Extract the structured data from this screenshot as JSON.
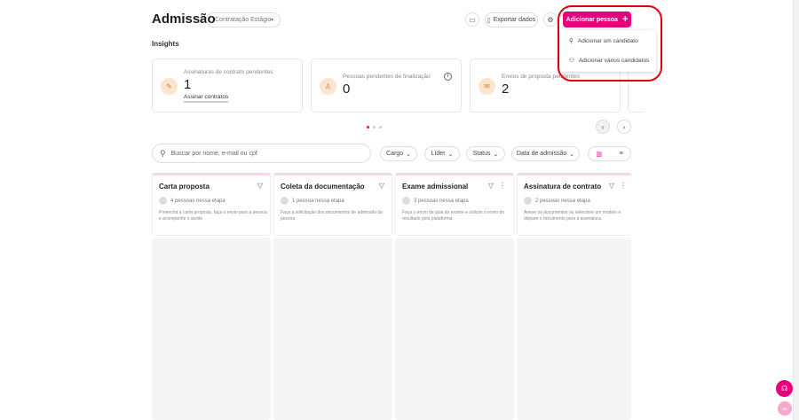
{
  "header": {
    "title": "Admissão",
    "flow_select": "Contratação Estágio",
    "export_label": "Exportar dados",
    "add_person_label": "Adicionar pessoa"
  },
  "add_menu": {
    "items": [
      {
        "label": "Adicionar um candidato",
        "icon": "user-icon"
      },
      {
        "label": "Adicionar vários candidatos",
        "icon": "users-icon"
      }
    ]
  },
  "insights": {
    "title": "Insights",
    "cards": [
      {
        "label": "Assinaturas de contrato pendentes",
        "value": "1",
        "link": "Assinar contratos",
        "icon": "pen-icon"
      },
      {
        "label": "Pessoas pendentes de finalização",
        "value": "0",
        "icon": "user-check-icon"
      },
      {
        "label": "Envios de proposta pendentes",
        "value": "2",
        "icon": "mail-icon"
      }
    ]
  },
  "filters": {
    "search_placeholder": "Buscar por nome, e-mail ou cpf",
    "cargo": "Cargo",
    "lider": "Líder",
    "status": "Status",
    "data": "Data de admissão"
  },
  "columns": [
    {
      "title": "Carta proposta",
      "count": "4 pessoas nessa etapa",
      "desc": "Preencha a carta proposta, faça o envio para a pessoa e acompanhe o aceite"
    },
    {
      "title": "Coleta da documentação",
      "count": "1 pessoa nessa etapa",
      "desc": "Faça a solicitação dos documentos de admissão da pessoa"
    },
    {
      "title": "Exame admissional",
      "count": "3 pessoas nessa etapa",
      "desc": "Faça o envio da guia do exame e solicite o envio do resultado pela plataforma."
    },
    {
      "title": "Assinatura de contrato",
      "count": "2 pessoas nessa etapa",
      "desc": "Anexe os documentos ou selecione um modelo e dispare o documento para a assinatura."
    }
  ],
  "colors": {
    "brand": "#e5007e",
    "annotation": "#e0000f"
  }
}
